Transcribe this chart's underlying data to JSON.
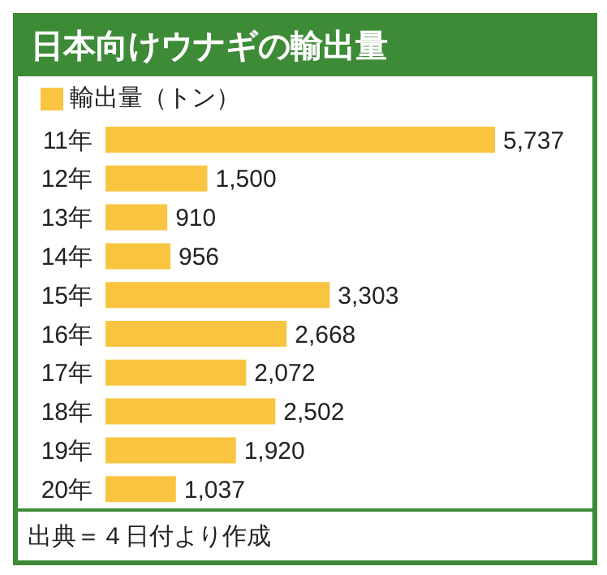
{
  "chart_data": {
    "type": "bar",
    "orientation": "horizontal",
    "title": "日本向けウナギの輸出量",
    "categories": [
      "11年",
      "12年",
      "13年",
      "14年",
      "15年",
      "16年",
      "17年",
      "18年",
      "19年",
      "20年"
    ],
    "series": [
      {
        "name": "輸出量（トン）",
        "color": "#f9c440",
        "values": [
          5737,
          1500,
          910,
          956,
          3303,
          2668,
          2072,
          2502,
          1920,
          1037
        ],
        "value_labels": [
          "5,737",
          "1,500",
          "910",
          "956",
          "3,303",
          "2,668",
          "2,072",
          "2,502",
          "1,920",
          "1,037"
        ]
      }
    ],
    "legend": "top left",
    "annotations": [
      "出典＝４日付より作成"
    ]
  }
}
